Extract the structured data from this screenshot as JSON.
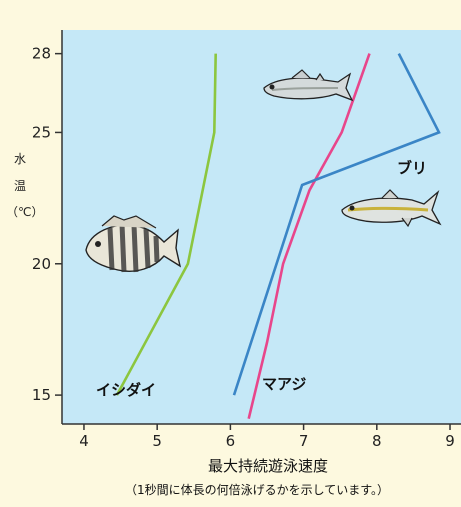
{
  "chart_data": {
    "type": "line",
    "xlabel": "最大持続遊泳速度",
    "xlabel_note": "（1秒間に体長の何倍泳げるかを示しています。）",
    "ylabel": [
      "水",
      "温",
      "（℃）"
    ],
    "xlim": [
      3.7,
      9.15
    ],
    "ylim": [
      13.9,
      28.9
    ],
    "x_ticks": [
      4,
      5,
      6,
      7,
      8,
      9
    ],
    "y_ticks": [
      15,
      20,
      25,
      28
    ],
    "grid": false,
    "series": [
      {
        "name": "イシダイ",
        "color": "#8cc63f",
        "points": [
          [
            4.45,
            15
          ],
          [
            5.42,
            20
          ],
          [
            5.78,
            25
          ],
          [
            5.8,
            28
          ]
        ]
      },
      {
        "name": "マアジ",
        "color": "#e8468b",
        "points": [
          [
            6.25,
            14.1
          ],
          [
            6.5,
            17
          ],
          [
            6.72,
            20
          ],
          [
            7.08,
            22.8
          ],
          [
            7.52,
            25
          ],
          [
            7.9,
            28
          ]
        ]
      },
      {
        "name": "ブリ",
        "color": "#3a85c6",
        "points": [
          [
            6.05,
            15
          ],
          [
            6.98,
            23
          ],
          [
            8.85,
            25
          ],
          [
            8.3,
            28
          ]
        ]
      }
    ],
    "icons": [
      "fish-icon",
      "fish-icon",
      "fish-icon"
    ],
    "colors": {
      "plot_bg": "#c5e8f7",
      "page_bg": "#fdf9df",
      "axis": "#333333"
    }
  }
}
